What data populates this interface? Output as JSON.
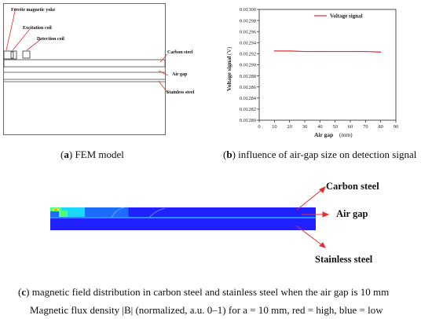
{
  "panel_a": {
    "labels": {
      "yoke": "Ferrite magnetic yoke",
      "excitation": "Excitation coil",
      "detection": "Detection coil",
      "carbon": "Carbon steel",
      "airgap": "Air gap",
      "stainless": "Stainless steel"
    },
    "caption_letter": "a",
    "caption_text": "FEM model"
  },
  "panel_b": {
    "caption_letter": "b",
    "caption_text": "influence of air-gap size on detection signal"
  },
  "panel_c": {
    "labels": {
      "carbon": "Carbon steel",
      "airgap": "Air gap",
      "stainless": "Stainless steel"
    },
    "caption_letter": "c",
    "caption_text": "magnetic field distribution in carbon steel and stainless steel when the air gap is 10 mm",
    "colormap_note": "Magnetic flux density |B| (normalized, a.u. 0–1) for a = 10 mm, red = high, blue = low"
  },
  "chart_data": {
    "type": "line",
    "title": "",
    "legend": "Voltage signal",
    "legend_position": "top-right",
    "xlabel": "Air gap",
    "xlabel_unit": "(mm)",
    "ylabel": "Voltage signal",
    "ylabel_unit": "(V)",
    "xlim": [
      0,
      90
    ],
    "ylim": [
      0.0128,
      0.013
    ],
    "x_ticks": [
      0,
      10,
      20,
      30,
      40,
      50,
      60,
      70,
      80,
      90
    ],
    "y_ticks": [
      "0.01280",
      "0.01282",
      "0.01284",
      "0.01286",
      "0.01288",
      "0.01290",
      "0.01292",
      "0.01294",
      "0.01296",
      "0.01298",
      "0.01300"
    ],
    "series": [
      {
        "name": "Voltage signal",
        "color": "#e03030",
        "x": [
          10,
          20,
          30,
          40,
          50,
          60,
          70,
          80
        ],
        "y": [
          0.012925,
          0.012925,
          0.012924,
          0.012924,
          0.012924,
          0.012924,
          0.012924,
          0.012923
        ]
      }
    ],
    "grid": false
  },
  "field_values": {
    "colormap": [
      "#1a1aff",
      "#1e6cff",
      "#19d9ff",
      "#52ff7a",
      "#d8ff2a",
      "#ff9a00",
      "#ff1a00"
    ],
    "carbon_layer": [
      0.12,
      0.42,
      0.34,
      0.26,
      0.23,
      0.19,
      0.16,
      0.13,
      0.11,
      0.09,
      0.08,
      0.07
    ],
    "stainless_layer": [
      0.02,
      0.02,
      0.02,
      0.02,
      0.02,
      0.02,
      0.02,
      0.02,
      0.02,
      0.02,
      0.02,
      0.02
    ]
  }
}
